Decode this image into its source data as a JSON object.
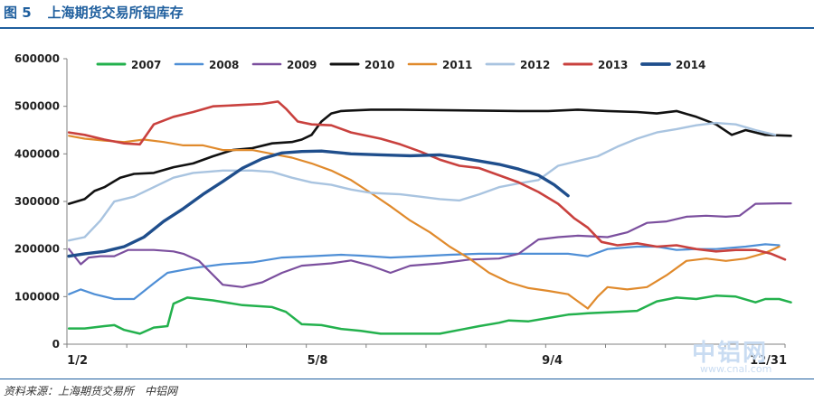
{
  "figure": {
    "number": "图 5",
    "title": "上海期货交易所铝库存",
    "source": "资料来源：上海期货交易所　中铝网"
  },
  "watermark": {
    "text": "中铝网",
    "url": "www.cnal.com"
  },
  "chart_data": {
    "type": "line",
    "title": "",
    "xlabel": "",
    "ylabel": "",
    "x_range": [
      1,
      365
    ],
    "ylim": [
      0,
      600000
    ],
    "y_ticks": [
      0,
      100000,
      200000,
      300000,
      400000,
      500000,
      600000
    ],
    "y_tick_labels": [
      "0",
      "100000",
      "200000",
      "300000",
      "400000",
      "500000",
      "600000"
    ],
    "x_ticks": [
      {
        "day": 2,
        "label": "1/2"
      },
      {
        "day": 128,
        "label": "5/8"
      },
      {
        "day": 247,
        "label": "9/4"
      },
      {
        "day": 365,
        "label": "12/31"
      }
    ],
    "grid": false,
    "legend": "top",
    "series": [
      {
        "name": "2007",
        "color": "#23b14d",
        "width": 2.5,
        "points": [
          [
            2,
            33000
          ],
          [
            10,
            33000
          ],
          [
            20,
            38000
          ],
          [
            25,
            40000
          ],
          [
            30,
            30000
          ],
          [
            38,
            22000
          ],
          [
            45,
            35000
          ],
          [
            52,
            38000
          ],
          [
            55,
            85000
          ],
          [
            62,
            98000
          ],
          [
            75,
            92000
          ],
          [
            90,
            82000
          ],
          [
            105,
            78000
          ],
          [
            112,
            68000
          ],
          [
            120,
            42000
          ],
          [
            130,
            40000
          ],
          [
            140,
            32000
          ],
          [
            150,
            28000
          ],
          [
            160,
            22000
          ],
          [
            175,
            22000
          ],
          [
            190,
            22000
          ],
          [
            200,
            30000
          ],
          [
            210,
            38000
          ],
          [
            220,
            45000
          ],
          [
            225,
            50000
          ],
          [
            235,
            48000
          ],
          [
            245,
            55000
          ],
          [
            255,
            62000
          ],
          [
            265,
            65000
          ],
          [
            280,
            68000
          ],
          [
            290,
            70000
          ],
          [
            300,
            90000
          ],
          [
            310,
            98000
          ],
          [
            320,
            95000
          ],
          [
            330,
            102000
          ],
          [
            340,
            100000
          ],
          [
            350,
            88000
          ],
          [
            355,
            95000
          ],
          [
            362,
            95000
          ],
          [
            368,
            88000
          ]
        ]
      },
      {
        "name": "2008",
        "color": "#4f8fd6",
        "width": 2.2,
        "points": [
          [
            2,
            105000
          ],
          [
            8,
            115000
          ],
          [
            15,
            105000
          ],
          [
            25,
            95000
          ],
          [
            35,
            95000
          ],
          [
            45,
            128000
          ],
          [
            52,
            150000
          ],
          [
            65,
            160000
          ],
          [
            80,
            168000
          ],
          [
            95,
            172000
          ],
          [
            110,
            182000
          ],
          [
            125,
            185000
          ],
          [
            140,
            188000
          ],
          [
            150,
            186000
          ],
          [
            165,
            182000
          ],
          [
            180,
            185000
          ],
          [
            195,
            188000
          ],
          [
            210,
            190000
          ],
          [
            225,
            190000
          ],
          [
            240,
            190000
          ],
          [
            255,
            190000
          ],
          [
            265,
            185000
          ],
          [
            275,
            200000
          ],
          [
            290,
            205000
          ],
          [
            300,
            205000
          ],
          [
            310,
            198000
          ],
          [
            320,
            200000
          ],
          [
            330,
            200000
          ],
          [
            345,
            205000
          ],
          [
            355,
            210000
          ],
          [
            362,
            208000
          ]
        ]
      },
      {
        "name": "2009",
        "color": "#7b4f9e",
        "width": 2.2,
        "points": [
          [
            2,
            200000
          ],
          [
            8,
            168000
          ],
          [
            12,
            182000
          ],
          [
            18,
            185000
          ],
          [
            25,
            185000
          ],
          [
            32,
            198000
          ],
          [
            45,
            198000
          ],
          [
            55,
            195000
          ],
          [
            60,
            190000
          ],
          [
            68,
            175000
          ],
          [
            80,
            125000
          ],
          [
            90,
            120000
          ],
          [
            100,
            130000
          ],
          [
            110,
            150000
          ],
          [
            120,
            165000
          ],
          [
            135,
            170000
          ],
          [
            145,
            176000
          ],
          [
            155,
            165000
          ],
          [
            165,
            150000
          ],
          [
            175,
            165000
          ],
          [
            190,
            170000
          ],
          [
            205,
            178000
          ],
          [
            220,
            180000
          ],
          [
            230,
            190000
          ],
          [
            240,
            220000
          ],
          [
            250,
            225000
          ],
          [
            260,
            228000
          ],
          [
            275,
            225000
          ],
          [
            285,
            235000
          ],
          [
            295,
            255000
          ],
          [
            305,
            258000
          ],
          [
            315,
            268000
          ],
          [
            325,
            270000
          ],
          [
            335,
            268000
          ],
          [
            342,
            270000
          ],
          [
            350,
            295000
          ],
          [
            362,
            296000
          ],
          [
            368,
            296000
          ]
        ]
      },
      {
        "name": "2010",
        "color": "#111111",
        "width": 2.6,
        "points": [
          [
            2,
            295000
          ],
          [
            10,
            305000
          ],
          [
            15,
            322000
          ],
          [
            20,
            330000
          ],
          [
            28,
            350000
          ],
          [
            35,
            358000
          ],
          [
            45,
            360000
          ],
          [
            55,
            372000
          ],
          [
            65,
            380000
          ],
          [
            75,
            395000
          ],
          [
            85,
            408000
          ],
          [
            95,
            412000
          ],
          [
            105,
            422000
          ],
          [
            115,
            425000
          ],
          [
            120,
            430000
          ],
          [
            125,
            440000
          ],
          [
            130,
            468000
          ],
          [
            135,
            485000
          ],
          [
            140,
            490000
          ],
          [
            155,
            493000
          ],
          [
            170,
            493000
          ],
          [
            190,
            492000
          ],
          [
            210,
            491000
          ],
          [
            230,
            490000
          ],
          [
            245,
            490000
          ],
          [
            260,
            493000
          ],
          [
            275,
            490000
          ],
          [
            290,
            488000
          ],
          [
            300,
            485000
          ],
          [
            310,
            490000
          ],
          [
            320,
            478000
          ],
          [
            330,
            462000
          ],
          [
            338,
            440000
          ],
          [
            345,
            450000
          ],
          [
            355,
            440000
          ],
          [
            368,
            438000
          ]
        ]
      },
      {
        "name": "2011",
        "color": "#e08a2c",
        "width": 2.2,
        "points": [
          [
            2,
            438000
          ],
          [
            10,
            432000
          ],
          [
            20,
            428000
          ],
          [
            30,
            425000
          ],
          [
            40,
            430000
          ],
          [
            50,
            425000
          ],
          [
            60,
            418000
          ],
          [
            70,
            418000
          ],
          [
            80,
            408000
          ],
          [
            95,
            408000
          ],
          [
            105,
            400000
          ],
          [
            115,
            392000
          ],
          [
            125,
            380000
          ],
          [
            135,
            365000
          ],
          [
            145,
            345000
          ],
          [
            155,
            318000
          ],
          [
            165,
            290000
          ],
          [
            175,
            260000
          ],
          [
            185,
            235000
          ],
          [
            195,
            205000
          ],
          [
            205,
            180000
          ],
          [
            215,
            150000
          ],
          [
            225,
            130000
          ],
          [
            235,
            118000
          ],
          [
            245,
            112000
          ],
          [
            255,
            105000
          ],
          [
            260,
            90000
          ],
          [
            265,
            75000
          ],
          [
            270,
            100000
          ],
          [
            275,
            120000
          ],
          [
            285,
            115000
          ],
          [
            295,
            120000
          ],
          [
            305,
            145000
          ],
          [
            315,
            175000
          ],
          [
            325,
            180000
          ],
          [
            335,
            175000
          ],
          [
            345,
            180000
          ],
          [
            355,
            192000
          ],
          [
            362,
            205000
          ]
        ]
      },
      {
        "name": "2012",
        "color": "#a9c4e0",
        "width": 2.4,
        "points": [
          [
            2,
            218000
          ],
          [
            10,
            225000
          ],
          [
            18,
            260000
          ],
          [
            25,
            300000
          ],
          [
            35,
            310000
          ],
          [
            45,
            330000
          ],
          [
            55,
            350000
          ],
          [
            65,
            360000
          ],
          [
            80,
            365000
          ],
          [
            95,
            365000
          ],
          [
            105,
            362000
          ],
          [
            115,
            350000
          ],
          [
            125,
            340000
          ],
          [
            135,
            335000
          ],
          [
            145,
            325000
          ],
          [
            155,
            318000
          ],
          [
            170,
            315000
          ],
          [
            180,
            310000
          ],
          [
            190,
            305000
          ],
          [
            200,
            302000
          ],
          [
            210,
            315000
          ],
          [
            220,
            330000
          ],
          [
            230,
            338000
          ],
          [
            240,
            345000
          ],
          [
            250,
            375000
          ],
          [
            260,
            385000
          ],
          [
            270,
            395000
          ],
          [
            280,
            415000
          ],
          [
            290,
            432000
          ],
          [
            300,
            445000
          ],
          [
            310,
            452000
          ],
          [
            320,
            460000
          ],
          [
            330,
            465000
          ],
          [
            340,
            462000
          ],
          [
            350,
            450000
          ],
          [
            360,
            440000
          ]
        ]
      },
      {
        "name": "2013",
        "color": "#c9413e",
        "width": 2.6,
        "points": [
          [
            2,
            445000
          ],
          [
            10,
            440000
          ],
          [
            20,
            430000
          ],
          [
            30,
            422000
          ],
          [
            38,
            420000
          ],
          [
            45,
            462000
          ],
          [
            55,
            478000
          ],
          [
            65,
            488000
          ],
          [
            75,
            500000
          ],
          [
            90,
            503000
          ],
          [
            100,
            505000
          ],
          [
            108,
            510000
          ],
          [
            112,
            495000
          ],
          [
            118,
            468000
          ],
          [
            125,
            462000
          ],
          [
            135,
            460000
          ],
          [
            145,
            445000
          ],
          [
            160,
            432000
          ],
          [
            170,
            420000
          ],
          [
            180,
            405000
          ],
          [
            190,
            388000
          ],
          [
            200,
            375000
          ],
          [
            210,
            370000
          ],
          [
            220,
            355000
          ],
          [
            230,
            340000
          ],
          [
            240,
            320000
          ],
          [
            250,
            295000
          ],
          [
            258,
            265000
          ],
          [
            265,
            245000
          ],
          [
            272,
            215000
          ],
          [
            280,
            208000
          ],
          [
            290,
            212000
          ],
          [
            300,
            205000
          ],
          [
            310,
            208000
          ],
          [
            320,
            200000
          ],
          [
            330,
            195000
          ],
          [
            340,
            198000
          ],
          [
            350,
            198000
          ],
          [
            358,
            190000
          ],
          [
            365,
            178000
          ]
        ]
      },
      {
        "name": "2014",
        "color": "#1f4e8c",
        "width": 3.4,
        "points": [
          [
            2,
            185000
          ],
          [
            10,
            190000
          ],
          [
            20,
            195000
          ],
          [
            30,
            205000
          ],
          [
            40,
            225000
          ],
          [
            50,
            258000
          ],
          [
            60,
            285000
          ],
          [
            70,
            315000
          ],
          [
            80,
            342000
          ],
          [
            90,
            370000
          ],
          [
            100,
            390000
          ],
          [
            110,
            402000
          ],
          [
            120,
            405000
          ],
          [
            130,
            406000
          ],
          [
            145,
            400000
          ],
          [
            160,
            398000
          ],
          [
            175,
            396000
          ],
          [
            190,
            398000
          ],
          [
            200,
            392000
          ],
          [
            210,
            385000
          ],
          [
            220,
            378000
          ],
          [
            230,
            368000
          ],
          [
            240,
            355000
          ],
          [
            248,
            335000
          ],
          [
            255,
            312000
          ]
        ]
      }
    ]
  }
}
